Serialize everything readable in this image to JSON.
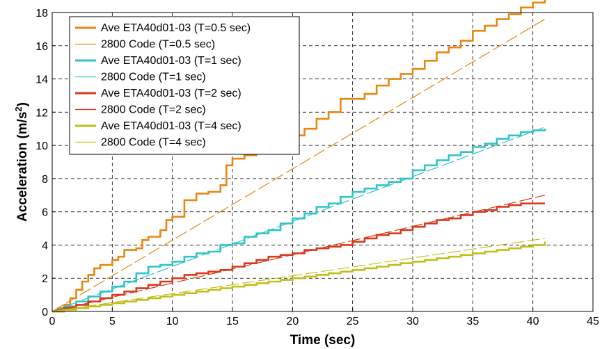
{
  "chart_data": {
    "type": "line",
    "title": "",
    "xlabel": "Time (sec)",
    "ylabel_main": "Acceleration (m/s",
    "ylabel_sup": "2",
    "ylabel_close": ")",
    "xlim": [
      0,
      45
    ],
    "ylim": [
      0,
      18
    ],
    "xticks": [
      "0",
      "5",
      "10",
      "15",
      "20",
      "25",
      "30",
      "35",
      "40",
      "45"
    ],
    "yticks": [
      "0",
      "2",
      "4",
      "6",
      "8",
      "10",
      "12",
      "14",
      "16",
      "18"
    ],
    "grid": true,
    "legend_position": "top-left",
    "series": [
      {
        "name": "Ave ETA40d01-03 (T=0.5 sec)",
        "color": "#e8860f",
        "style": "step",
        "x": [
          0,
          0.5,
          1,
          1.5,
          2,
          2.5,
          3,
          3.5,
          4,
          5,
          5.5,
          6,
          7,
          7.5,
          8,
          9,
          9.5,
          10,
          11,
          12,
          13,
          14,
          14.5,
          15,
          16,
          17,
          18,
          19,
          20,
          21,
          22,
          23,
          24,
          26,
          27,
          28,
          29,
          30,
          31,
          32,
          33,
          34,
          35,
          36,
          37,
          38,
          39,
          40,
          41
        ],
        "y": [
          0,
          0.2,
          0.4,
          0.8,
          1.3,
          1.8,
          2.2,
          2.6,
          2.8,
          3.1,
          3.3,
          3.7,
          3.8,
          4.3,
          4.5,
          4.9,
          5.5,
          5.7,
          6.7,
          7.1,
          7.2,
          7.6,
          8.8,
          9.2,
          9.4,
          9.7,
          9.9,
          10.4,
          10.6,
          11.0,
          11.6,
          12.0,
          12.8,
          13.1,
          13.6,
          14.0,
          14.3,
          14.6,
          15.1,
          15.6,
          15.9,
          16.3,
          16.9,
          17.2,
          17.6,
          17.9,
          18.3,
          18.6,
          18.9
        ]
      },
      {
        "name": "2800 Code (T=0.5 sec)",
        "color": "#e8860f",
        "style": "thin",
        "x": [
          0,
          41
        ],
        "y": [
          0,
          17.6
        ]
      },
      {
        "name": "Ave ETA40d01-03 (T=1 sec)",
        "color": "#2ec4c8",
        "style": "step",
        "x": [
          0,
          1,
          2,
          3,
          4,
          5,
          6,
          7,
          8,
          9,
          10,
          11,
          12,
          13,
          14,
          15,
          16,
          17,
          18,
          19,
          20,
          21,
          22,
          23,
          24,
          25,
          26,
          27,
          28,
          29,
          30,
          31,
          32,
          33,
          34,
          35,
          36,
          37,
          38,
          39,
          40,
          41
        ],
        "y": [
          0,
          0.3,
          0.6,
          0.9,
          1.2,
          1.5,
          1.8,
          2.3,
          2.7,
          2.8,
          3.0,
          3.3,
          3.5,
          3.6,
          4.0,
          4.1,
          4.5,
          4.7,
          4.9,
          5.3,
          5.6,
          5.9,
          6.3,
          6.5,
          6.9,
          7.2,
          7.4,
          7.6,
          7.8,
          8.0,
          8.5,
          8.8,
          9.1,
          9.4,
          9.6,
          9.9,
          10.1,
          10.4,
          10.6,
          10.8,
          10.9,
          11.0
        ]
      },
      {
        "name": "2800 Code (T=1 sec)",
        "color": "#2ec4c8",
        "style": "thin",
        "x": [
          0,
          41
        ],
        "y": [
          0,
          11.1
        ]
      },
      {
        "name": "Ave ETA40d01-03 (T=2 sec)",
        "color": "#d9391b",
        "style": "step",
        "x": [
          0,
          1,
          2,
          3,
          4,
          5,
          6,
          7,
          8,
          9,
          10,
          11,
          12,
          13,
          14,
          15,
          16,
          17,
          18,
          19,
          20,
          21,
          22,
          23,
          24,
          25,
          26,
          27,
          28,
          29,
          30,
          31,
          32,
          33,
          34,
          35,
          36,
          37,
          38,
          39,
          40,
          41
        ],
        "y": [
          0,
          0.2,
          0.4,
          0.6,
          0.8,
          1.0,
          1.2,
          1.4,
          1.6,
          1.8,
          2.0,
          2.2,
          2.3,
          2.4,
          2.5,
          2.7,
          2.9,
          3.1,
          3.3,
          3.4,
          3.5,
          3.7,
          3.8,
          3.9,
          4.0,
          4.2,
          4.4,
          4.6,
          4.7,
          4.9,
          5.1,
          5.3,
          5.5,
          5.6,
          5.8,
          6.0,
          6.1,
          6.3,
          6.4,
          6.5,
          6.5,
          6.5
        ]
      },
      {
        "name": "2800 Code (T=2 sec)",
        "color": "#d9391b",
        "style": "thin",
        "x": [
          0,
          41
        ],
        "y": [
          0,
          7.0
        ]
      },
      {
        "name": "Ave ETA40d01-03 (T=4 sec)",
        "color": "#bfbf1a",
        "style": "step",
        "x": [
          0,
          1,
          2,
          3,
          4,
          5,
          6,
          7,
          8,
          9,
          10,
          11,
          12,
          13,
          14,
          15,
          16,
          17,
          18,
          19,
          20,
          21,
          22,
          23,
          24,
          25,
          26,
          27,
          28,
          29,
          30,
          31,
          32,
          33,
          34,
          35,
          36,
          37,
          38,
          39,
          40,
          41
        ],
        "y": [
          0,
          0.1,
          0.2,
          0.3,
          0.4,
          0.5,
          0.6,
          0.7,
          0.8,
          0.9,
          1.0,
          1.1,
          1.2,
          1.3,
          1.4,
          1.5,
          1.6,
          1.7,
          1.8,
          1.9,
          2.0,
          2.1,
          2.2,
          2.3,
          2.4,
          2.5,
          2.6,
          2.7,
          2.8,
          2.9,
          3.0,
          3.1,
          3.2,
          3.3,
          3.4,
          3.5,
          3.6,
          3.7,
          3.8,
          3.9,
          4.0,
          4.2
        ]
      },
      {
        "name": "2800 Code (T=4 sec)",
        "color": "#bfbf1a",
        "style": "thin",
        "x": [
          0,
          41
        ],
        "y": [
          0,
          4.4
        ]
      }
    ]
  }
}
